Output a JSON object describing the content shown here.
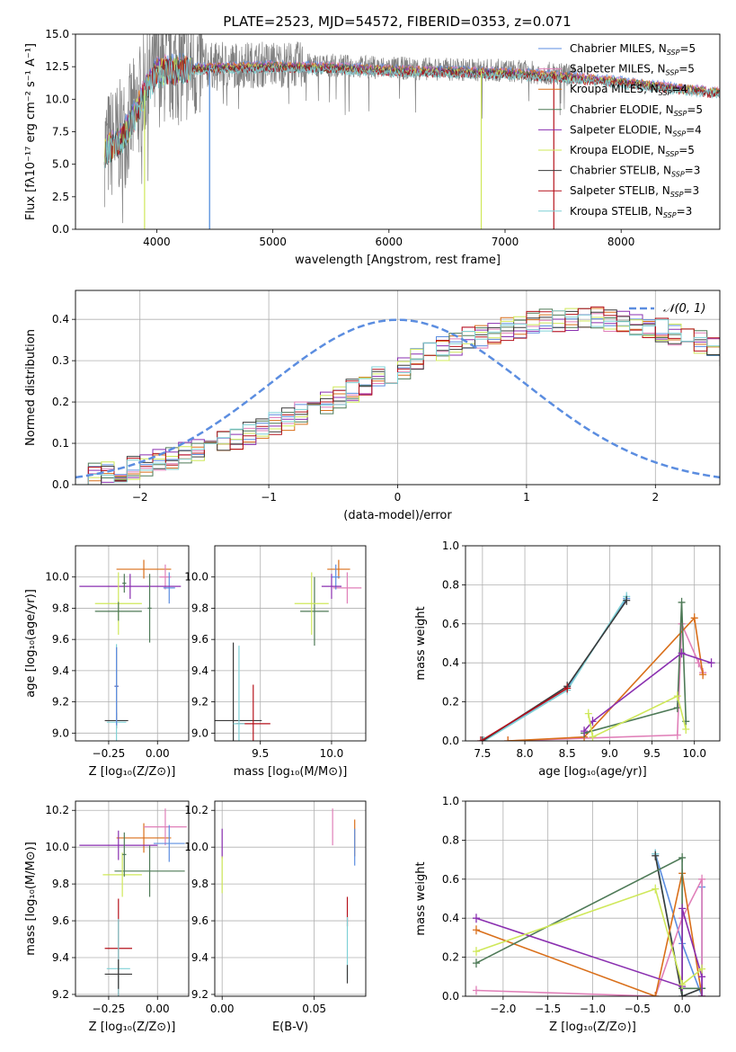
{
  "figure_title": "PLATE=2523, MJD=54572, FIBERID=0353, z=0.071",
  "colors": {
    "Chabrier MILES": "#5b8de0",
    "Salpeter MILES": "#e07fb8",
    "Kroupa MILES": "#d96f1a",
    "Chabrier ELODIE": "#4e7a57",
    "Salpeter ELODIE": "#8a2fb0",
    "Kroupa ELODIE": "#cfe85a",
    "Chabrier STELIB": "#3a3a3a",
    "Salpeter STELIB": "#b5121b",
    "Kroupa STELIB": "#7fd1d6",
    "data": "#808080",
    "normal": "#5b8de0"
  },
  "chart_data": [
    {
      "id": "spectrum",
      "type": "line",
      "title": "PLATE=2523, MJD=54572, FIBERID=0353, z=0.071",
      "xlabel": "wavelength [Angstrom, rest frame]",
      "ylabel": "Flux [fλ10⁻¹⁷ erg cm⁻² s⁻¹ A⁻¹]",
      "xlim": [
        3300,
        8850
      ],
      "ylim": [
        0,
        15
      ],
      "xticks": [
        "4000",
        "5000",
        "6000",
        "7000",
        "8000"
      ],
      "yticks": [
        "0.0",
        "2.5",
        "5.0",
        "7.5",
        "10.0",
        "12.5",
        "15.0"
      ],
      "grid": false,
      "legend_position": "right",
      "legend": [
        {
          "name": "Chabrier MILES",
          "ssp": "5"
        },
        {
          "name": "Salpeter MILES",
          "ssp": "5"
        },
        {
          "name": "Kroupa MILES",
          "ssp": "4"
        },
        {
          "name": "Chabrier ELODIE",
          "ssp": "5"
        },
        {
          "name": "Salpeter ELODIE",
          "ssp": "4"
        },
        {
          "name": "Kroupa ELODIE",
          "ssp": "5"
        },
        {
          "name": "Chabrier STELIB",
          "ssp": "3"
        },
        {
          "name": "Salpeter STELIB",
          "ssp": "3"
        },
        {
          "name": "Kroupa STELIB",
          "ssp": "3"
        }
      ],
      "continuum": {
        "x": [
          3550,
          3700,
          3800,
          3900,
          4000,
          4200,
          4500,
          5000,
          5500,
          6000,
          6500,
          7000,
          7500,
          8000,
          8500,
          8850
        ],
        "y": [
          6.2,
          7.2,
          8.8,
          10.8,
          12.3,
          12.5,
          12.6,
          12.7,
          12.6,
          12.4,
          12.3,
          12.2,
          11.9,
          11.5,
          11.0,
          10.7
        ]
      },
      "model_dips": [
        {
          "series": "Kroupa ELODIE",
          "x": 3895,
          "y": 0
        },
        {
          "series": "Kroupa STELIB",
          "x": 4455,
          "y": 0
        },
        {
          "series": "Chabrier MILES",
          "x": 4455,
          "y": 0
        },
        {
          "series": "Kroupa ELODIE",
          "x": 6795,
          "y": 0
        },
        {
          "series": "Salpeter STELIB",
          "x": 7420,
          "y": 0
        }
      ]
    },
    {
      "id": "residuals",
      "type": "line",
      "xlabel": "(data-model)/error",
      "ylabel": "Normed distribution",
      "xlim": [
        -2.5,
        2.5
      ],
      "ylim": [
        0,
        0.47
      ],
      "xticks": [
        "−2",
        "−1",
        "0",
        "1",
        "2"
      ],
      "yticks": [
        "0.0",
        "0.1",
        "0.2",
        "0.3",
        "0.4"
      ],
      "grid": true,
      "legend_position": "top-right",
      "legend": [
        {
          "name": "𝒩(0, 1)"
        }
      ],
      "bin_width": 0.1,
      "histogram_base": [
        0.025,
        0.028,
        0.03,
        0.035,
        0.042,
        0.05,
        0.057,
        0.065,
        0.074,
        0.082,
        0.091,
        0.1,
        0.11,
        0.122,
        0.135,
        0.148,
        0.16,
        0.173,
        0.187,
        0.2,
        0.214,
        0.228,
        0.242,
        0.256,
        0.27,
        0.285,
        0.3,
        0.315,
        0.328,
        0.34,
        0.351,
        0.36,
        0.368,
        0.376,
        0.383,
        0.39,
        0.395,
        0.398,
        0.4,
        0.401,
        0.4,
        0.398,
        0.395,
        0.39,
        0.383,
        0.375,
        0.366,
        0.355,
        0.343,
        0.33,
        0.316,
        0.302,
        0.288,
        0.273,
        0.258,
        0.242,
        0.227,
        0.212,
        0.197,
        0.182,
        0.168,
        0.154,
        0.141,
        0.128,
        0.116,
        0.105,
        0.094,
        0.084,
        0.075,
        0.066,
        0.058,
        0.051,
        0.045,
        0.04,
        0.036,
        0.033,
        0.031,
        0.03,
        0.03,
        0.03
      ],
      "normal_curve": {
        "mean": 0,
        "sigma": 1
      }
    },
    {
      "id": "age_vs_Z",
      "type": "scatter",
      "xlabel": "Z [log₁₀(Z/Z⊙)]",
      "ylabel": "age  [log₁₀(age/yr)]",
      "xlim": [
        -0.42,
        0.16
      ],
      "ylim": [
        8.95,
        10.2
      ],
      "xticks": [
        "−0.25",
        "0.00"
      ],
      "yticks": [
        "9.0",
        "9.2",
        "9.4",
        "9.6",
        "9.8",
        "10.0"
      ],
      "grid": true,
      "points": [
        {
          "series": "Kroupa MILES",
          "x": -0.07,
          "y": 10.05,
          "xerr": 0.14,
          "yerr": 0.06
        },
        {
          "series": "Salpeter MILES",
          "x": 0.04,
          "y": 10.0,
          "xerr": 0.03,
          "yerr": 0.08
        },
        {
          "series": "Chabrier MILES",
          "x": 0.06,
          "y": 9.93,
          "xerr": 0.03,
          "yerr": 0.1
        },
        {
          "series": "Salpeter ELODIE",
          "x": -0.14,
          "y": 9.94,
          "xerr": 0.26,
          "yerr": 0.08
        },
        {
          "series": "Chabrier ELODIE",
          "x": -0.17,
          "y": 9.96,
          "xerr": 0.01,
          "yerr": 0.06
        },
        {
          "series": "Kroupa ELODIE",
          "x": -0.2,
          "y": 9.83,
          "xerr": 0.12,
          "yerr": 0.2
        },
        {
          "series": "Chabrier ELODIE",
          "x": -0.2,
          "y": 9.78,
          "xerr": 0.12,
          "yerr": 0.06
        },
        {
          "series": "Chabrier ELODIE",
          "x": -0.04,
          "y": 9.8,
          "xerr": 0.01,
          "yerr": 0.22
        },
        {
          "series": "Chabrier STELIB",
          "x": -0.21,
          "y": 9.08,
          "xerr": 0.06,
          "yerr": 0.05
        },
        {
          "series": "Salpeter STELIB",
          "x": -0.21,
          "y": 9.3,
          "xerr": 0.01,
          "yerr": 0.25
        },
        {
          "series": "Kroupa STELIB",
          "x": -0.21,
          "y": 9.07,
          "xerr": 0.05,
          "yerr": 0.5
        },
        {
          "series": "Chabrier MILES",
          "x": -0.21,
          "y": 9.3,
          "xerr": 0.01,
          "yerr": 0.25
        }
      ]
    },
    {
      "id": "age_vs_mass",
      "type": "scatter",
      "xlabel": "mass [log₁₀(M/M⊙)]",
      "ylabel": "",
      "xlim": [
        9.18,
        10.24
      ],
      "ylim": [
        8.95,
        10.2
      ],
      "xticks": [
        "9.5",
        "10.0"
      ],
      "yticks": [
        "9.0",
        "9.2",
        "9.4",
        "9.6",
        "9.8",
        "10.0"
      ],
      "grid": true,
      "points": [
        {
          "series": "Kroupa MILES",
          "x": 10.05,
          "y": 10.05,
          "xerr": 0.08,
          "yerr": 0.06
        },
        {
          "series": "Salpeter MILES",
          "x": 10.11,
          "y": 9.93,
          "xerr": 0.1,
          "yerr": 0.1
        },
        {
          "series": "Chabrier MILES",
          "x": 10.03,
          "y": 10.0,
          "xerr": 0.03,
          "yerr": 0.08
        },
        {
          "series": "Salpeter ELODIE",
          "x": 10.0,
          "y": 9.94,
          "xerr": 0.07,
          "yerr": 0.08
        },
        {
          "series": "Chabrier ELODIE",
          "x": 9.88,
          "y": 9.78,
          "xerr": 0.1,
          "yerr": 0.22
        },
        {
          "series": "Kroupa ELODIE",
          "x": 9.86,
          "y": 9.83,
          "xerr": 0.12,
          "yerr": 0.2
        },
        {
          "series": "Chabrier STELIB",
          "x": 9.31,
          "y": 9.08,
          "xerr": 0.2,
          "yerr": 0.5
        },
        {
          "series": "Salpeter STELIB",
          "x": 9.45,
          "y": 9.06,
          "xerr": 0.12,
          "yerr": 0.25
        },
        {
          "series": "Kroupa STELIB",
          "x": 9.35,
          "y": 9.06,
          "xerr": 0.04,
          "yerr": 0.5
        }
      ]
    },
    {
      "id": "weight_vs_age",
      "type": "line",
      "xlabel": "age  [log₁₀(age/yr)]",
      "ylabel": "mass weight",
      "xlim": [
        7.3,
        10.3
      ],
      "ylim": [
        0,
        1
      ],
      "xticks": [
        "7.5",
        "8.0",
        "8.5",
        "9.0",
        "9.5",
        "10.0"
      ],
      "yticks": [
        "0.0",
        "0.2",
        "0.4",
        "0.6",
        "0.8",
        "1.0"
      ],
      "grid": true,
      "series": [
        {
          "name": "Chabrier MILES",
          "x": [
            7.5,
            8.5,
            9.2
          ],
          "y": [
            0.0,
            0.27,
            0.73
          ]
        },
        {
          "name": "Kroupa STELIB",
          "x": [
            7.52,
            8.5,
            9.2
          ],
          "y": [
            0.0,
            0.26,
            0.74
          ]
        },
        {
          "name": "Chabrier STELIB",
          "x": [
            7.5,
            8.5,
            9.2
          ],
          "y": [
            0.0,
            0.28,
            0.72
          ]
        },
        {
          "name": "Salpeter STELIB",
          "x": [
            7.48,
            8.5
          ],
          "y": [
            0.0,
            0.27
          ]
        },
        {
          "name": "Salpeter MILES",
          "x": [
            7.8,
            9.8,
            9.85,
            10.05,
            10.1
          ],
          "y": [
            0.0,
            0.03,
            0.6,
            0.4,
            0.35
          ]
        },
        {
          "name": "Kroupa MILES",
          "x": [
            7.8,
            8.7,
            10.0,
            10.1
          ],
          "y": [
            0.0,
            0.02,
            0.63,
            0.34
          ]
        },
        {
          "name": "Chabrier ELODIE",
          "x": [
            8.7,
            9.8,
            9.85,
            9.9
          ],
          "y": [
            0.04,
            0.17,
            0.71,
            0.1
          ]
        },
        {
          "name": "Salpeter ELODIE",
          "x": [
            8.7,
            8.8,
            9.85,
            10.2
          ],
          "y": [
            0.05,
            0.1,
            0.45,
            0.4
          ]
        },
        {
          "name": "Kroupa ELODIE",
          "x": [
            8.75,
            8.8,
            9.8,
            9.9
          ],
          "y": [
            0.14,
            0.02,
            0.23,
            0.06
          ]
        }
      ]
    },
    {
      "id": "mass_vs_Z",
      "type": "scatter",
      "xlabel": "Z [log₁₀(Z/Z⊙)]",
      "ylabel": "mass [log₁₀(M/M⊙)]",
      "xlim": [
        -0.42,
        0.16
      ],
      "ylim": [
        9.19,
        10.25
      ],
      "xticks": [
        "−0.25",
        "0.00"
      ],
      "yticks": [
        "9.2",
        "9.4",
        "9.6",
        "9.8",
        "10.0",
        "10.2"
      ],
      "grid": true,
      "points": [
        {
          "series": "Kroupa MILES",
          "x": -0.07,
          "y": 10.05,
          "xerr": 0.14,
          "yerr": 0.08
        },
        {
          "series": "Salpeter MILES",
          "x": 0.04,
          "y": 10.11,
          "xerr": 0.11,
          "yerr": 0.1
        },
        {
          "series": "Chabrier MILES",
          "x": 0.06,
          "y": 10.02,
          "xerr": 0.08,
          "yerr": 0.1
        },
        {
          "series": "Salpeter ELODIE",
          "x": -0.2,
          "y": 10.01,
          "xerr": 0.2,
          "yerr": 0.08
        },
        {
          "series": "Chabrier ELODIE",
          "x": -0.04,
          "y": 9.87,
          "xerr": 0.18,
          "yerr": 0.14
        },
        {
          "series": "Kroupa ELODIE",
          "x": -0.18,
          "y": 9.85,
          "xerr": 0.1,
          "yerr": 0.12
        },
        {
          "series": "Chabrier ELODIE",
          "x": -0.17,
          "y": 9.96,
          "xerr": 0.01,
          "yerr": 0.12
        },
        {
          "series": "Salpeter STELIB",
          "x": -0.2,
          "y": 9.45,
          "xerr": 0.07,
          "yerr": 0.27
        },
        {
          "series": "Kroupa STELIB",
          "x": -0.2,
          "y": 9.34,
          "xerr": 0.06,
          "yerr": 0.27
        },
        {
          "series": "Chabrier STELIB",
          "x": -0.2,
          "y": 9.31,
          "xerr": 0.07,
          "yerr": 0.08
        }
      ]
    },
    {
      "id": "mass_vs_ebv",
      "type": "scatter",
      "xlabel": "E(B-V)",
      "ylabel": "",
      "xlim": [
        -0.004,
        0.078
      ],
      "ylim": [
        9.19,
        10.25
      ],
      "xticks": [
        "0.00",
        "0.05"
      ],
      "yticks": [
        "9.2",
        "9.4",
        "9.6",
        "9.8",
        "10.0",
        "10.2"
      ],
      "grid": true,
      "points": [
        {
          "series": "Salpeter ELODIE",
          "x": 0.0,
          "y": 10.02,
          "xerr": 0,
          "yerr": 0.08
        },
        {
          "series": "Kroupa ELODIE",
          "x": 0.0,
          "y": 9.85,
          "xerr": 0,
          "yerr": 0.1
        },
        {
          "series": "Salpeter MILES",
          "x": 0.06,
          "y": 10.11,
          "xerr": 0,
          "yerr": 0.1
        },
        {
          "series": "Kroupa MILES",
          "x": 0.072,
          "y": 10.05,
          "xerr": 0,
          "yerr": 0.1
        },
        {
          "series": "Chabrier MILES",
          "x": 0.072,
          "y": 10.0,
          "xerr": 0,
          "yerr": 0.1
        },
        {
          "series": "Salpeter STELIB",
          "x": 0.068,
          "y": 9.65,
          "xerr": 0,
          "yerr": 0.08
        },
        {
          "series": "Kroupa STELIB",
          "x": 0.068,
          "y": 9.45,
          "xerr": 0,
          "yerr": 0.17
        },
        {
          "series": "Chabrier STELIB",
          "x": 0.068,
          "y": 9.31,
          "xerr": 0,
          "yerr": 0.05
        }
      ]
    },
    {
      "id": "weight_vs_Z",
      "type": "line",
      "xlabel": "Z [log₁₀(Z/Z⊙)]",
      "ylabel": "mass weight",
      "xlim": [
        -2.42,
        0.42
      ],
      "ylim": [
        0,
        1
      ],
      "xticks": [
        "−2.0",
        "−1.5",
        "−1.0",
        "−0.5",
        "0.0"
      ],
      "yticks": [
        "0.0",
        "0.2",
        "0.4",
        "0.6",
        "0.8",
        "1.0"
      ],
      "grid": true,
      "series": [
        {
          "name": "Chabrier MILES",
          "x": [
            -0.3,
            0.0,
            0.22,
            0.22
          ],
          "y": [
            0.73,
            0.27,
            0.0,
            0.56
          ]
        },
        {
          "name": "Kroupa STELIB",
          "x": [
            -0.3,
            0.0,
            0.22
          ],
          "y": [
            0.73,
            0.0,
            0.04
          ]
        },
        {
          "name": "Chabrier STELIB",
          "x": [
            -0.3,
            0.0,
            0.22
          ],
          "y": [
            0.72,
            0.0,
            0.04
          ]
        },
        {
          "name": "Salpeter MILES",
          "x": [
            -2.3,
            -0.3,
            0.0,
            0.22,
            0.22
          ],
          "y": [
            0.03,
            0.0,
            0.4,
            0.6,
            0.0
          ]
        },
        {
          "name": "Kroupa MILES",
          "x": [
            -2.3,
            -0.3,
            0.0,
            0.22
          ],
          "y": [
            0.34,
            0.0,
            0.63,
            0.0
          ]
        },
        {
          "name": "Chabrier ELODIE",
          "x": [
            -2.3,
            0.0,
            0.0,
            0.22
          ],
          "y": [
            0.17,
            0.71,
            0.04,
            0.04
          ]
        },
        {
          "name": "Salpeter ELODIE",
          "x": [
            -2.3,
            0.0,
            0.0,
            0.22,
            0.22
          ],
          "y": [
            0.4,
            0.05,
            0.45,
            0.1,
            0.0
          ]
        },
        {
          "name": "Kroupa ELODIE",
          "x": [
            -2.3,
            -0.3,
            0.0,
            0.22
          ],
          "y": [
            0.23,
            0.55,
            0.06,
            0.14
          ]
        }
      ]
    }
  ]
}
